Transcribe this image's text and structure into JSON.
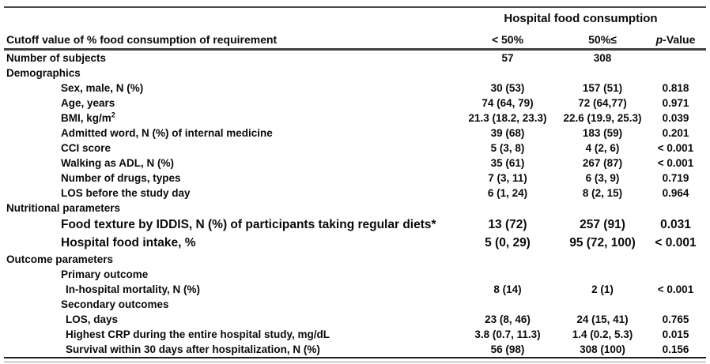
{
  "table": {
    "spanner": "Hospital food consumption",
    "columns": {
      "row_header": "Cutoff value of % food consumption of requirement",
      "col1": "< 50%",
      "col2": "50%≤",
      "p_italic": "p",
      "p_rest": "-Value"
    },
    "rows": [
      {
        "label": "Number of subjects",
        "indent": 0,
        "c1": "57",
        "c2": "308",
        "p": ""
      },
      {
        "label": "Demographics",
        "indent": 0,
        "section": true,
        "c1": "",
        "c2": "",
        "p": ""
      },
      {
        "label": "Sex, male, N (%)",
        "indent": 1,
        "c1": "30 (53)",
        "c2": "157 (51)",
        "p": "0.818"
      },
      {
        "label": "Age, years",
        "indent": 1,
        "c1": "74 (64, 79)",
        "c2": "72 (64,77)",
        "p": "0.971"
      },
      {
        "label": "BMI, kg/m",
        "sup": "2",
        "indent": 1,
        "c1": "21.3 (18.2, 23.3)",
        "c2": "22.6 (19.9, 25.3)",
        "p": "0.039"
      },
      {
        "label": "Admitted word, N (%) of internal medicine",
        "indent": 1,
        "c1": "39 (68)",
        "c2": "183 (59)",
        "p": "0.201"
      },
      {
        "label": "CCI score",
        "indent": 1,
        "c1": "5 (3, 8)",
        "c2": "4 (2, 6)",
        "p": "< 0.001"
      },
      {
        "label": "Walking as ADL, N (%)",
        "indent": 1,
        "c1": "35 (61)",
        "c2": "267 (87)",
        "p": "< 0.001"
      },
      {
        "label": "Number of drugs, types",
        "indent": 1,
        "c1": "7 (3, 11)",
        "c2": "6 (3, 9)",
        "p": "0.719"
      },
      {
        "label": "LOS before the study day",
        "indent": 1,
        "c1": "6 (1, 24)",
        "c2": "8 (2, 15)",
        "p": "0.964"
      },
      {
        "label": "Nutritional parameters",
        "indent": 0,
        "section": true,
        "c1": "",
        "c2": "",
        "p": ""
      },
      {
        "label": "Food texture by IDDIS, N (%) of participants  taking regular diets*",
        "indent": 1,
        "large": true,
        "c1": "13 (72)",
        "c2": "257 (91)",
        "p": "0.031"
      },
      {
        "label": "Hospital food intake, %",
        "indent": 1,
        "large": true,
        "c1": "5 (0, 29)",
        "c2": "95 (72, 100)",
        "p": "< 0.001"
      },
      {
        "label": "Outcome parameters",
        "indent": 0,
        "section": true,
        "c1": "",
        "c2": "",
        "p": ""
      },
      {
        "label": "Primary outcome",
        "indent": 1,
        "section": true,
        "c1": "",
        "c2": "",
        "p": ""
      },
      {
        "label": "In-hospital mortality, N (%)",
        "indent": 2,
        "c1": "8 (14)",
        "c2": "2 (1)",
        "p": "< 0.001"
      },
      {
        "label": "Secondary outcomes",
        "indent": 1,
        "section": true,
        "c1": "",
        "c2": "",
        "p": ""
      },
      {
        "label": "LOS, days",
        "indent": 2,
        "c1": "23 (8, 46)",
        "c2": "24 (15, 41)",
        "p": "0.765"
      },
      {
        "label": "Highest CRP during the entire hospital study, mg/dL",
        "indent": 2,
        "c1": "3.8 (0.7, 11.3)",
        "c2": "1.4 (0.2, 5.3)",
        "p": "0.015"
      },
      {
        "label": "Survival within 30 days after hospitalization, N (%)",
        "indent": 2,
        "c1": "56 (98)",
        "c2": "308 (100)",
        "p": "0.156"
      }
    ]
  }
}
